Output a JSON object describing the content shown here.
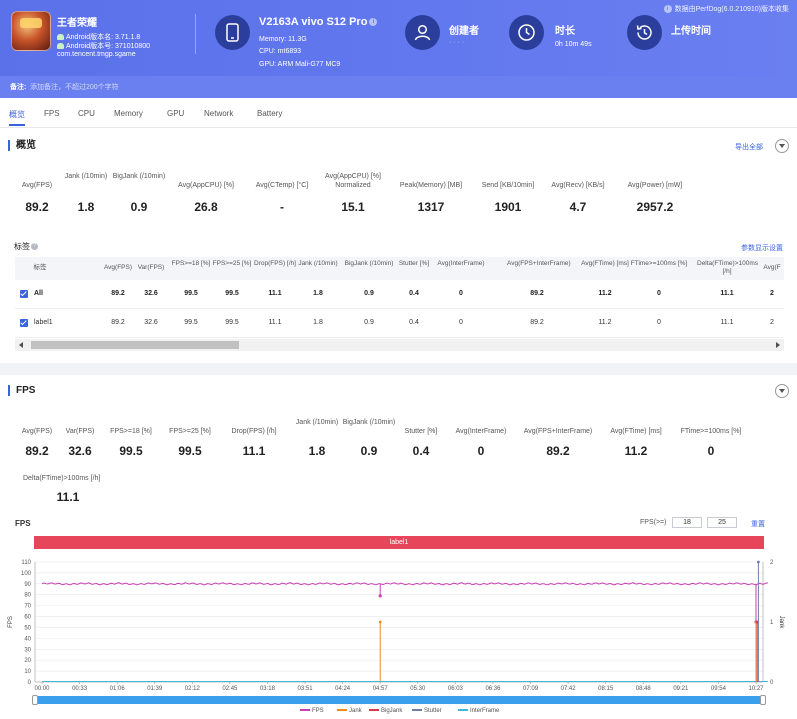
{
  "header": {
    "app_name": "王者荣耀",
    "android_version": "Android版本名: 3.71.1.8",
    "android_code": "Android版本号: 371010800",
    "package": "com.tencent.tmgp.sgame",
    "device_name": "V2163A vivo S12 Pro",
    "memory": "Memory: 11.3G",
    "cpu": "CPU: mt6893",
    "gpu": "GPU: ARM Mali-G77 MC9",
    "creator_label": "创建者",
    "creator_value": "· · · ·",
    "duration_label": "时长",
    "duration_value": "0h 10m 49s",
    "upload_label": "上传时间",
    "upload_value": "",
    "collected_by": "数据由PerfDog(6.0.210910)版本收集",
    "remark_label": "备注:",
    "remark_placeholder": "添加备注，不超过200个字符"
  },
  "tabs": [
    "概览",
    "FPS",
    "CPU",
    "Memory",
    "GPU",
    "Network",
    "Battery"
  ],
  "overview": {
    "title": "概览",
    "export_label": "导出全部",
    "metrics": [
      {
        "label": "Avg(FPS)",
        "value": "89.2"
      },
      {
        "label": "Jank (/10min)",
        "value": "1.8"
      },
      {
        "label": "BigJank (/10min)",
        "value": "0.9"
      },
      {
        "label": "Avg(AppCPU) [%]",
        "value": "26.8"
      },
      {
        "label": "Avg(CTemp) [°C]",
        "value": "-"
      },
      {
        "label": "Avg(AppCPU) [%] Normalized",
        "value": "15.1"
      },
      {
        "label": "Peak(Memory) [MB]",
        "value": "1317"
      },
      {
        "label": "Send [KB/10min]",
        "value": "1901"
      },
      {
        "label": "Avg(Recv) [KB/s]",
        "value": "4.7"
      },
      {
        "label": "Avg(Power) [mW]",
        "value": "2957.2"
      }
    ]
  },
  "tags": {
    "title": "标签",
    "settings_label": "参数显示设置",
    "columns": [
      "标签",
      "Avg(FPS)",
      "Var(FPS)",
      "FPS>=18 [%]",
      "FPS>=25 [%]",
      "Drop(FPS) [/h]",
      "Jank (/10min)",
      "BigJank (/10min)",
      "Stutter [%]",
      "Avg(InterFrame)",
      "Avg(FPS+InterFrame)",
      "Avg(FTime) [ms]",
      "FTime>=100ms [%]",
      "Delta(FTime)>100ms [/h]",
      "Avg(F"
    ],
    "rows": [
      {
        "label": "All",
        "cells": [
          "89.2",
          "32.6",
          "99.5",
          "99.5",
          "11.1",
          "1.8",
          "0.9",
          "0.4",
          "0",
          "89.2",
          "11.2",
          "0",
          "11.1",
          "2"
        ]
      },
      {
        "label": "label1",
        "cells": [
          "89.2",
          "32.6",
          "99.5",
          "99.5",
          "11.1",
          "1.8",
          "0.9",
          "0.4",
          "0",
          "89.2",
          "11.2",
          "0",
          "11.1",
          "2"
        ]
      }
    ]
  },
  "fps_section": {
    "title": "FPS",
    "metrics": [
      {
        "label": "Avg(FPS)",
        "value": "89.2"
      },
      {
        "label": "Var(FPS)",
        "value": "32.6"
      },
      {
        "label": "FPS>=18 [%]",
        "value": "99.5"
      },
      {
        "label": "FPS>=25 [%]",
        "value": "99.5"
      },
      {
        "label": "Drop(FPS) [/h]",
        "value": "11.1"
      },
      {
        "label": "Jank (/10min)",
        "value": "1.8"
      },
      {
        "label": "BigJank (/10min)",
        "value": "0.9"
      },
      {
        "label": "Stutter [%]",
        "value": "0.4"
      },
      {
        "label": "Avg(InterFrame)",
        "value": "0"
      },
      {
        "label": "Avg(FPS+InterFrame)",
        "value": "89.2"
      },
      {
        "label": "Avg(FTime) [ms]",
        "value": "11.2"
      },
      {
        "label": "FTime>=100ms [%]",
        "value": "0"
      },
      {
        "label": "Delta(FTime)>100ms [/h]",
        "value": "11.1"
      }
    ],
    "chart_title": "FPS",
    "fps_threshold_label": "FPS(>=)",
    "fps_threshold_1": "18",
    "fps_threshold_2": "25",
    "reset_label": "重置",
    "label_bar": "label1"
  },
  "chart_data": {
    "type": "line",
    "ylabel": "FPS",
    "y2label": "Jank",
    "ylim": [
      0,
      110
    ],
    "y2lim": [
      0,
      2
    ],
    "yticks": [
      "0",
      "10",
      "20",
      "30",
      "40",
      "50",
      "60",
      "70",
      "80",
      "90",
      "100",
      "110"
    ],
    "y2ticks": [
      "0",
      "1",
      "2"
    ],
    "xticks": [
      "00:00",
      "00:33",
      "01:06",
      "01:39",
      "02:12",
      "02:45",
      "03:18",
      "03:51",
      "04:24",
      "04:57",
      "05:30",
      "06:03",
      "06:36",
      "07:09",
      "07:42",
      "08:15",
      "08:48",
      "09:21",
      "09:54",
      "10:27"
    ],
    "series": [
      {
        "name": "FPS",
        "color": "#c93fb5",
        "baseline": 90,
        "dips": [
          {
            "t": "04:57",
            "y": 79
          },
          {
            "t": "10:27",
            "y": 55
          }
        ]
      },
      {
        "name": "Jank",
        "color": "#f08a1c",
        "spikes": [
          {
            "t": "04:57",
            "y2": 1
          },
          {
            "t": "10:27",
            "y2": 1
          }
        ]
      },
      {
        "name": "BigJank",
        "color": "#d73a49",
        "spikes": [
          {
            "t": "10:27",
            "y2": 1
          }
        ]
      },
      {
        "name": "Stutter",
        "color": "#6f7fa8",
        "spikes": [
          {
            "t": "10:27",
            "y2": 2
          }
        ]
      },
      {
        "name": "InterFrame",
        "color": "#3fb7d8",
        "baseline": 0
      }
    ]
  }
}
